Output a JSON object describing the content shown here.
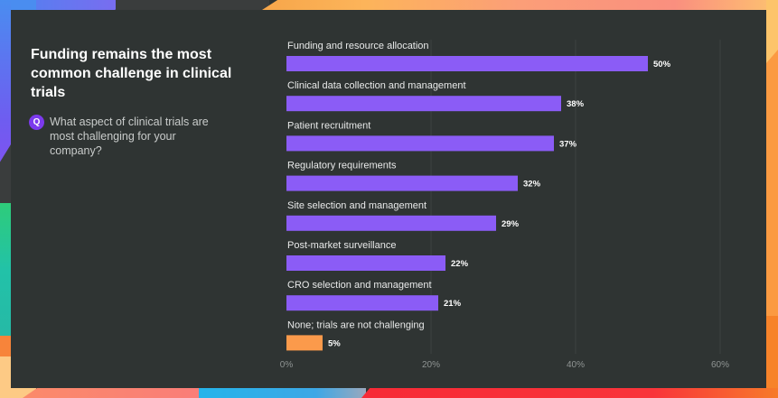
{
  "title": "Funding remains the most common challenge in clinical trials",
  "question": {
    "badge": "Q",
    "text": "What aspect of clinical trials are most challenging for your company?"
  },
  "colors": {
    "background": "#2f3433",
    "bar_primary": "#8b5cf6",
    "bar_highlight": "#fb9a4b",
    "gridline": "#3c4241"
  },
  "chart_data": {
    "type": "bar",
    "orientation": "horizontal",
    "title": "Funding remains the most common challenge in clinical trials",
    "xlabel": "",
    "ylabel": "",
    "xlim": [
      0,
      60
    ],
    "grid": true,
    "categories": [
      "Funding and resource allocation",
      "Clinical data collection and management",
      "Patient recruitment",
      "Regulatory requirements",
      "Site selection and management",
      "Post-market surveillance",
      "CRO selection and management",
      "None; trials are not challenging"
    ],
    "values": [
      50,
      38,
      37,
      32,
      29,
      22,
      21,
      5
    ],
    "value_labels": [
      "50%",
      "38%",
      "37%",
      "32%",
      "29%",
      "22%",
      "21%",
      "5%"
    ],
    "highlight": [
      false,
      false,
      false,
      false,
      false,
      false,
      false,
      true
    ],
    "ticks": [
      0,
      20,
      40,
      60
    ],
    "tick_labels": [
      "0%",
      "20%",
      "40%",
      "60%"
    ]
  }
}
